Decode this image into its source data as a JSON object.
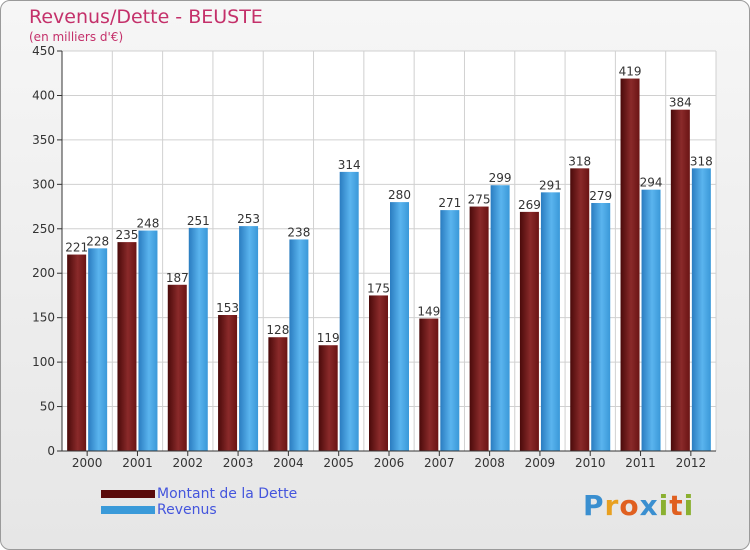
{
  "chart_data": {
    "type": "bar",
    "title": "Revenus/Dette - BEUSTE",
    "subtitle": "(en milliers d'€)",
    "categories": [
      "2000",
      "2001",
      "2002",
      "2003",
      "2004",
      "2005",
      "2006",
      "2007",
      "2008",
      "2009",
      "2010",
      "2011",
      "2012"
    ],
    "series": [
      {
        "name": "Montant de la Dette",
        "color": "#7a1a1a",
        "values": [
          221,
          235,
          187,
          153,
          128,
          119,
          175,
          149,
          275,
          269,
          318,
          419,
          384
        ]
      },
      {
        "name": "Revenus",
        "color": "#3a9ad9",
        "values": [
          228,
          248,
          251,
          253,
          238,
          314,
          280,
          271,
          299,
          291,
          279,
          294,
          318
        ]
      }
    ],
    "ylim": [
      0,
      450
    ],
    "yticks": [
      0,
      50,
      100,
      150,
      200,
      250,
      300,
      350,
      400,
      450
    ],
    "grid": true,
    "legend": "bottom-left",
    "data_labels": true
  },
  "branding": {
    "logo_text": "Proxiti"
  }
}
